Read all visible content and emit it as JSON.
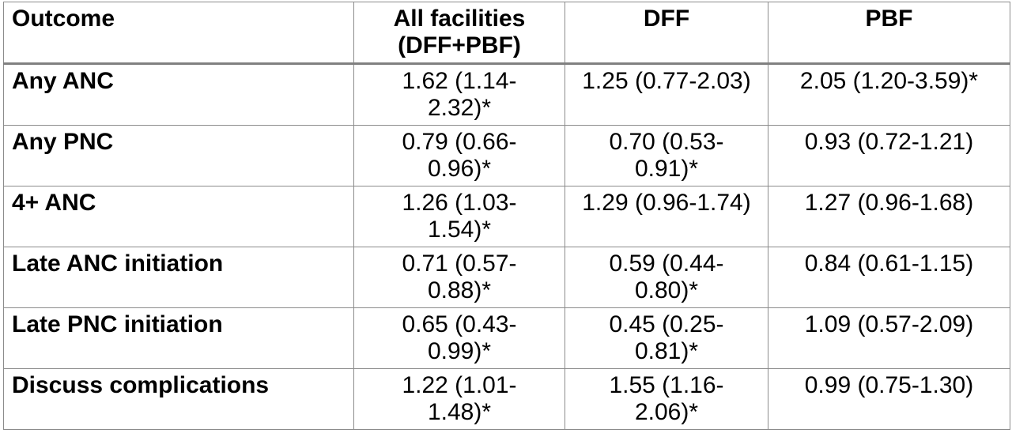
{
  "table": {
    "headers": [
      "Outcome",
      "All facilities (DFF+PBF)",
      "DFF",
      "PBF"
    ],
    "rows": [
      {
        "outcome": "Any ANC",
        "all": "1.62 (1.14-2.32)*",
        "dff": "1.25 (0.77-2.03)",
        "pbf": "2.05 (1.20-3.59)*"
      },
      {
        "outcome": "Any PNC",
        "all": "0.79 (0.66-0.96)*",
        "dff": "0.70 (0.53-0.91)*",
        "pbf": "0.93 (0.72-1.21)"
      },
      {
        "outcome": "4+ ANC",
        "all": "1.26 (1.03-1.54)*",
        "dff": "1.29 (0.96-1.74)",
        "pbf": "1.27 (0.96-1.68)"
      },
      {
        "outcome": "Late ANC initiation",
        "all": "0.71 (0.57-0.88)*",
        "dff": "0.59 (0.44-0.80)*",
        "pbf": "0.84 (0.61-1.15)"
      },
      {
        "outcome": "Late PNC initiation",
        "all": "0.65 (0.43-0.99)*",
        "dff": "0.45 (0.25-0.81)*",
        "pbf": "1.09 (0.57-2.09)"
      },
      {
        "outcome": "Discuss complications",
        "all": "1.22 (1.01-1.48)*",
        "dff": "1.55 (1.16-2.06)*",
        "pbf": "0.99 (0.75-1.30)"
      }
    ]
  }
}
